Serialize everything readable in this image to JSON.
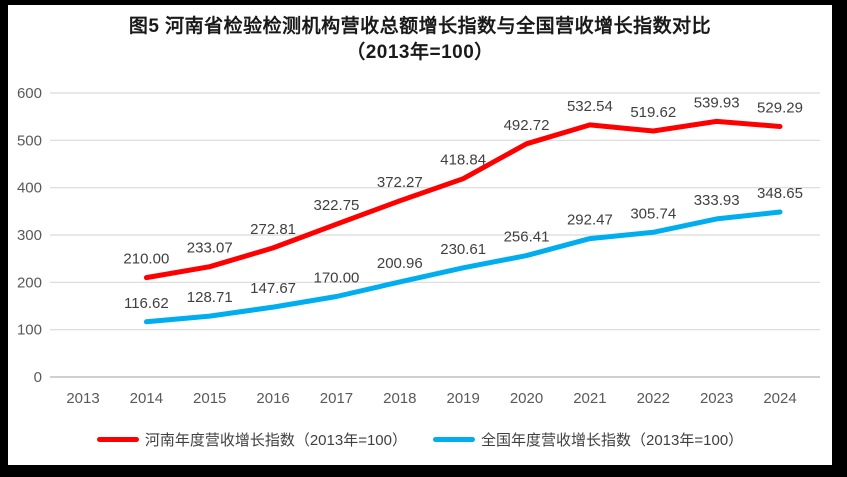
{
  "frame": {
    "border_color": "#000000",
    "background_color": "#ffffff"
  },
  "chart_data": {
    "type": "line",
    "title": "图5  河南省检验检测机构营收总额增长指数与全国营收增长指数对比",
    "subtitle": "（2013年=100）",
    "categories": [
      "2013",
      "2014",
      "2015",
      "2016",
      "2017",
      "2018",
      "2019",
      "2020",
      "2021",
      "2022",
      "2023",
      "2024"
    ],
    "series": [
      {
        "name": "河南年度营收增长指数（2013年=100）",
        "color": "#ff0000",
        "values": [
          null,
          210.0,
          233.07,
          272.81,
          322.75,
          372.27,
          418.84,
          492.72,
          532.54,
          519.62,
          539.93,
          529.29
        ]
      },
      {
        "name": "全国年度营收增长指数（2013年=100）",
        "color": "#00aeef",
        "values": [
          null,
          116.62,
          128.71,
          147.67,
          170.0,
          200.96,
          230.61,
          256.41,
          292.47,
          305.74,
          333.93,
          348.65
        ]
      }
    ],
    "y_axis": {
      "min": 0,
      "max": 600,
      "step": 100,
      "tick_labels": [
        "0",
        "100",
        "200",
        "300",
        "400",
        "500",
        "600"
      ]
    },
    "grid": true,
    "gridline_color": "#d9d9d9",
    "baseline_color": "#bfbfbf",
    "tick_label_color": "#595959",
    "data_label_color": "#404040",
    "data_label_decimals": 2,
    "legend_position": "bottom"
  }
}
